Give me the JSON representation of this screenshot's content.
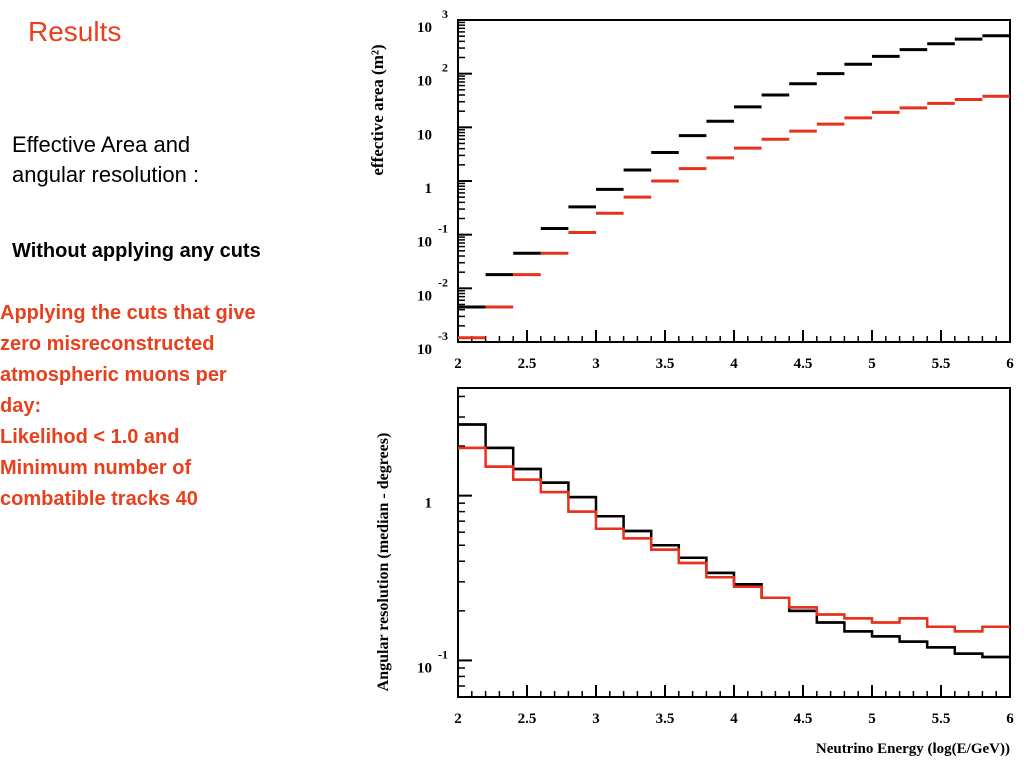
{
  "slide": {
    "title": "Results",
    "subtitle_lines": [
      "Effective Area and",
      "angular resolution :"
    ],
    "black_legend": "Without applying any cuts",
    "red_legend_lines": [
      "Applying the cuts that give",
      "zero misreconstructed",
      "atmospheric muons per",
      "day:",
      "Likelihod < 1.0 and",
      "Minimum number of",
      "combatible tracks 40"
    ]
  },
  "colors": {
    "black_series": "#000000",
    "red_series": "#e8311c",
    "title": "#e8401c"
  },
  "chart_data": [
    {
      "type": "line",
      "style": "horizontal step markers",
      "ylabel": "effective area (m²)",
      "yscale": "log",
      "xlim": [
        2,
        6
      ],
      "ylim": [
        0.001,
        1000
      ],
      "x_ticks": [
        "2",
        "2.5",
        "3",
        "3.5",
        "4",
        "4.5",
        "5",
        "5.5",
        "6"
      ],
      "y_ticks": [
        {
          "value": 1000,
          "base": "10",
          "exp": "3"
        },
        {
          "value": 100,
          "base": "10",
          "exp": "2"
        },
        {
          "value": 10,
          "base": "10",
          "exp": ""
        },
        {
          "value": 1,
          "base": "1",
          "exp": ""
        },
        {
          "value": 0.1,
          "base": "10",
          "exp": "-1"
        },
        {
          "value": 0.01,
          "base": "10",
          "exp": "-2"
        },
        {
          "value": 0.001,
          "base": "10",
          "exp": "-3"
        }
      ],
      "bin_edges": [
        2.0,
        2.2,
        2.4,
        2.6,
        2.8,
        3.0,
        3.2,
        3.4,
        3.6,
        3.8,
        4.0,
        4.2,
        4.4,
        4.6,
        4.8,
        5.0,
        5.2,
        5.4,
        5.6,
        5.8,
        6.0
      ],
      "series": [
        {
          "color": "#000000",
          "values": [
            0.0045,
            0.018,
            0.045,
            0.13,
            0.33,
            0.7,
            1.6,
            3.4,
            7,
            13,
            24,
            40,
            65,
            100,
            150,
            210,
            280,
            360,
            440,
            510
          ]
        },
        {
          "color": "#e8311c",
          "values": [
            0.0012,
            0.0045,
            0.018,
            0.045,
            0.11,
            0.25,
            0.5,
            1.0,
            1.7,
            2.7,
            4.1,
            6.0,
            8.5,
            11.5,
            15,
            19,
            23,
            28,
            33,
            38
          ]
        }
      ],
      "grid": false
    },
    {
      "type": "line",
      "style": "step histogram",
      "xlabel": "Neutrino Energy (log(E/GeV))",
      "ylabel": "Angular resolution (median - degrees)",
      "yscale": "log",
      "xlim": [
        2,
        6
      ],
      "ylim": [
        0.06,
        4.5
      ],
      "x_ticks": [
        "2",
        "2.5",
        "3",
        "3.5",
        "4",
        "4.5",
        "5",
        "5.5",
        "6"
      ],
      "y_ticks": [
        {
          "value": 1,
          "base": "1",
          "exp": ""
        },
        {
          "value": 0.1,
          "base": "10",
          "exp": "-1"
        }
      ],
      "bin_edges": [
        2.0,
        2.2,
        2.4,
        2.6,
        2.8,
        3.0,
        3.2,
        3.4,
        3.6,
        3.8,
        4.0,
        4.2,
        4.4,
        4.6,
        4.8,
        5.0,
        5.2,
        5.4,
        5.6,
        5.8,
        6.0
      ],
      "series": [
        {
          "color": "#000000",
          "values": [
            2.7,
            1.95,
            1.45,
            1.2,
            0.98,
            0.75,
            0.61,
            0.5,
            0.42,
            0.34,
            0.29,
            0.24,
            0.2,
            0.17,
            0.15,
            0.14,
            0.13,
            0.12,
            0.11,
            0.105
          ]
        },
        {
          "color": "#e8311c",
          "values": [
            1.95,
            1.5,
            1.25,
            1.05,
            0.8,
            0.63,
            0.55,
            0.47,
            0.39,
            0.32,
            0.28,
            0.24,
            0.21,
            0.19,
            0.18,
            0.17,
            0.18,
            0.16,
            0.15,
            0.16
          ]
        }
      ],
      "grid": false
    }
  ]
}
